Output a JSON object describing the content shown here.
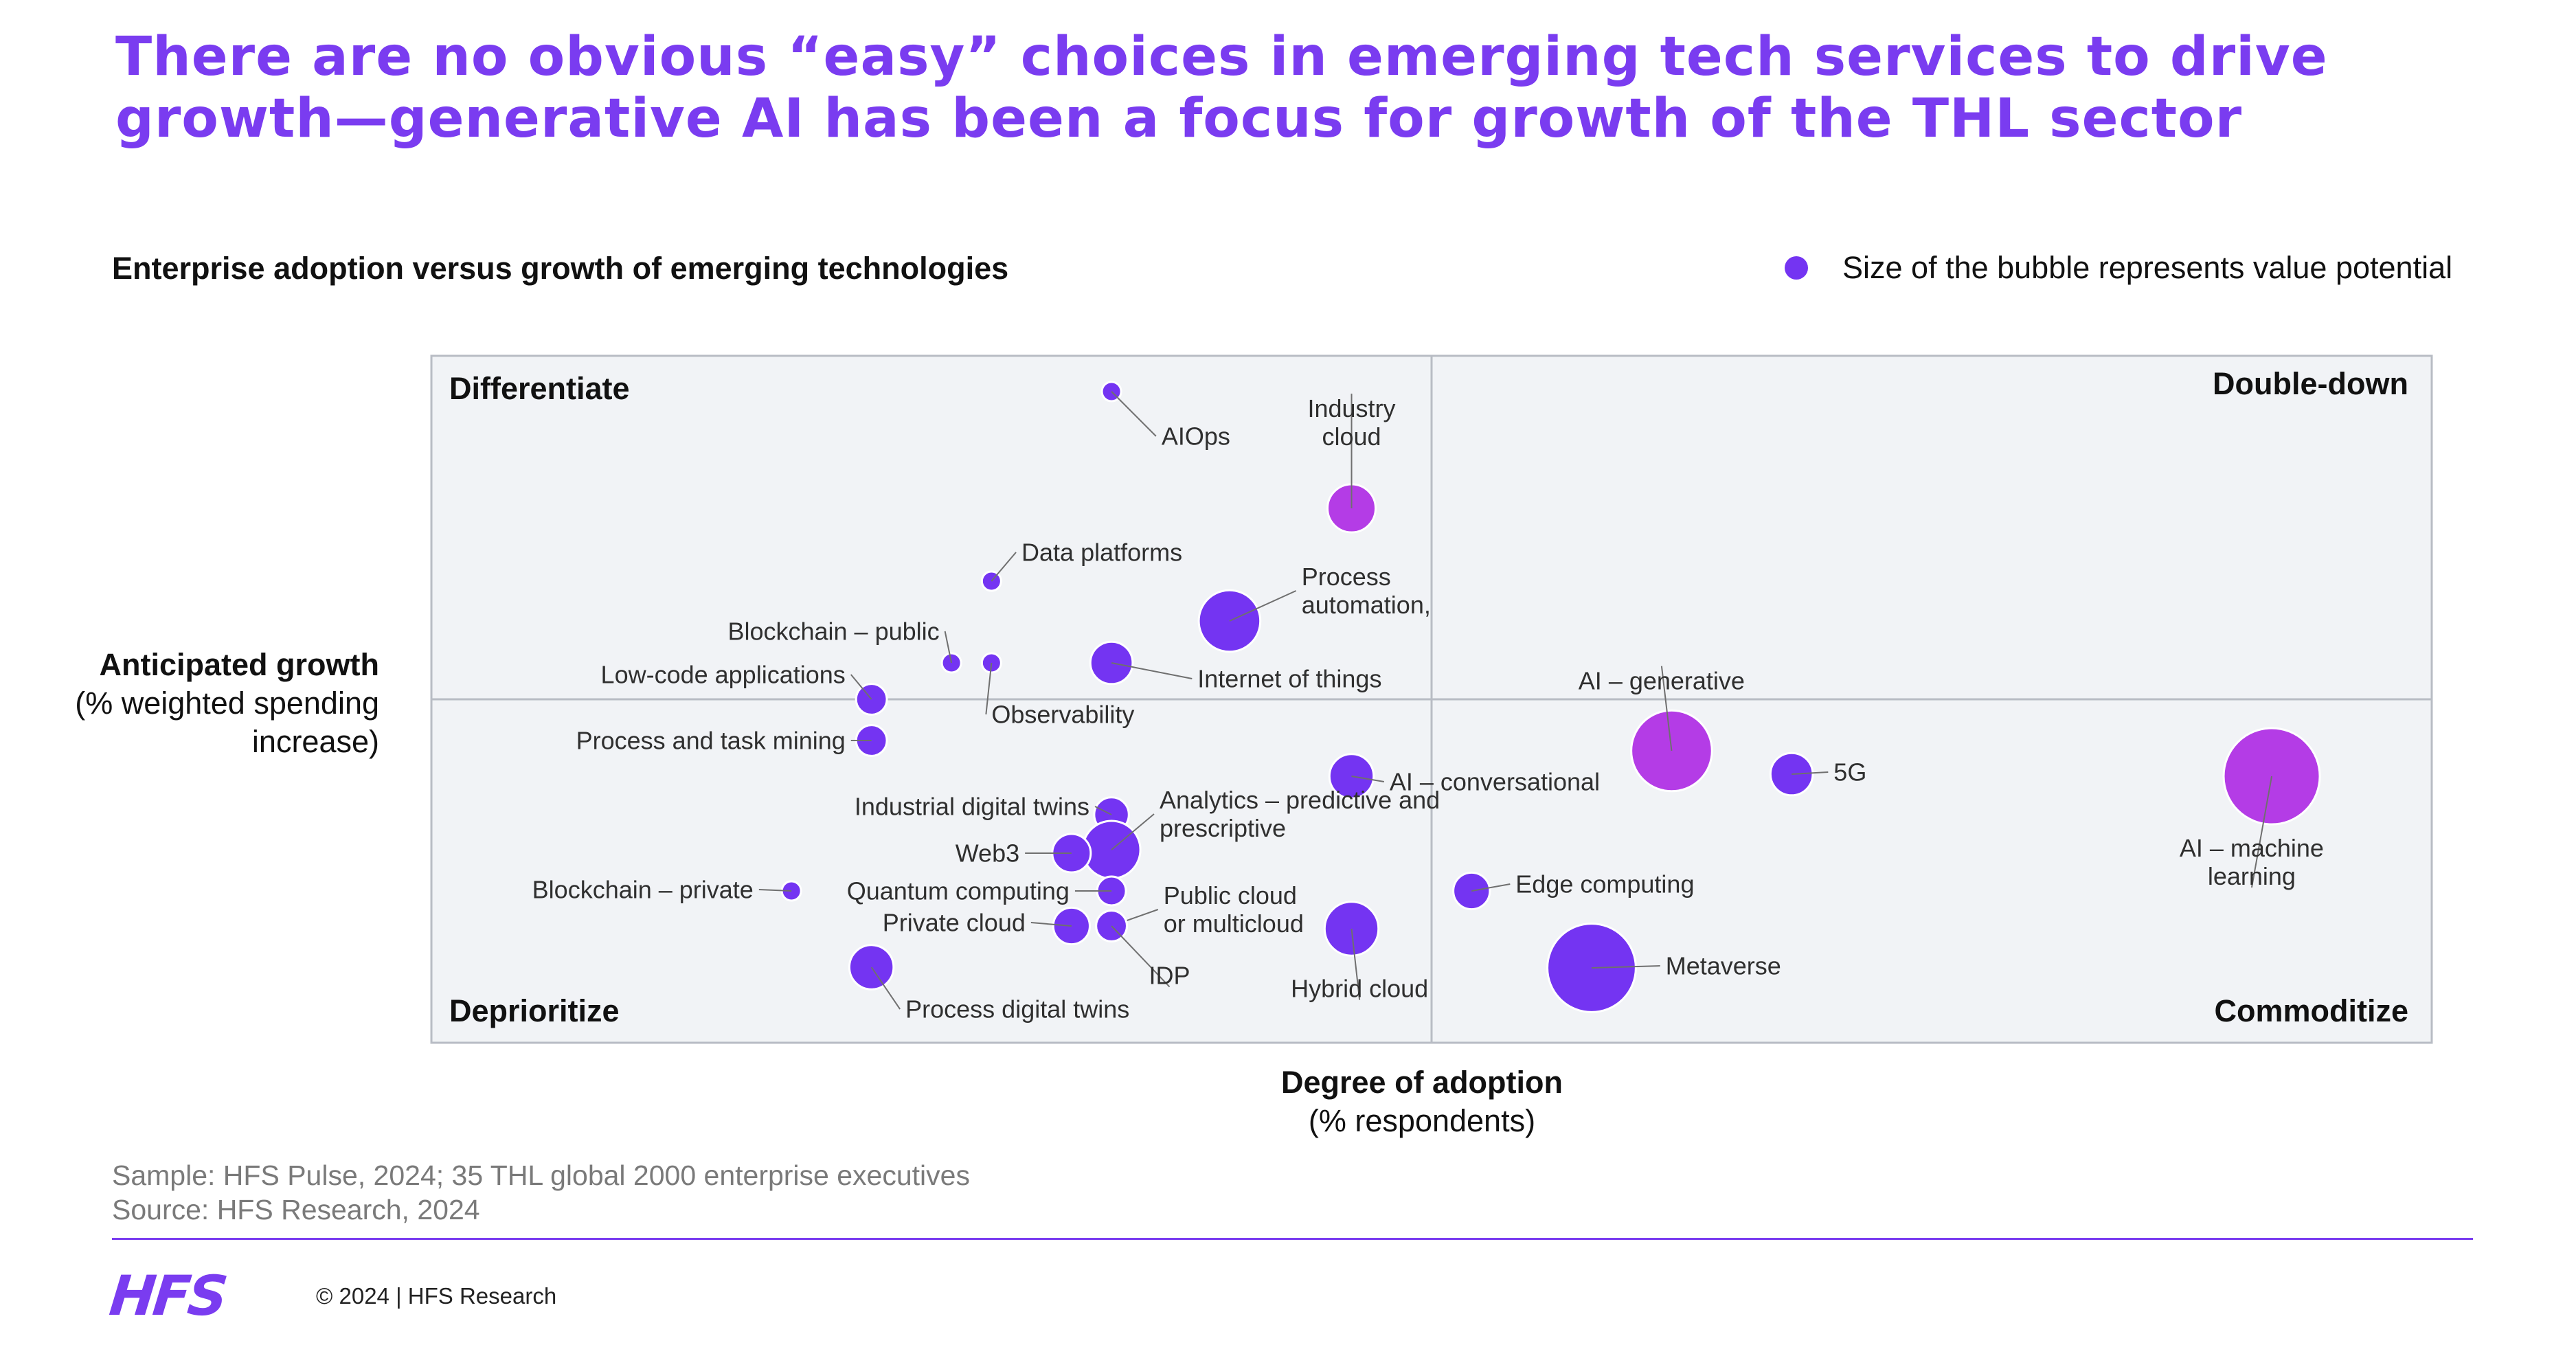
{
  "title": "There are no obvious “easy” choices in emerging tech services to drive growth—generative AI has been a focus for growth of the THL sector",
  "subtitle": "Enterprise adoption versus growth of emerging technologies",
  "legend": {
    "text": "Size of the bubble represents value potential"
  },
  "axes": {
    "y_title": "Anticipated growth",
    "y_unit": "(% weighted spending increase)",
    "x_title": "Degree of adoption",
    "x_unit": "(% respondents)"
  },
  "footer": {
    "sample": "Sample: HFS Pulse, 2024; 35 THL global 2000 enterprise executives",
    "source": "Source: HFS Research, 2024",
    "logo": "HFS",
    "copyright": "© 2024 | HFS Research"
  },
  "colors": {
    "accent": "#7a3cf0",
    "bubble": "#7434f2",
    "highlight": "#b43ce6",
    "grid": "#b8bcc4",
    "plot_bg": "#f1f3f6"
  },
  "chart_data": {
    "type": "scatter",
    "subtype": "bubble",
    "quadrants": {
      "top_left": "Differentiate",
      "top_right": "Double-down",
      "bottom_left": "Deprioritize",
      "bottom_right": "Commoditize"
    },
    "xlim": [
      0,
      100
    ],
    "ylim": [
      0,
      100
    ],
    "x_tick_labels": "none",
    "y_tick_labels": "none",
    "grid": "quadrant dividers only",
    "points": [
      {
        "name": "AIOps",
        "x": 34.0,
        "y": 94.8,
        "size": 1.0,
        "highlight": false,
        "label_lines": [
          "AIOps"
        ],
        "label_dx": 2.5,
        "label_dy": -6.5,
        "anchor": "start"
      },
      {
        "name": "Industry cloud",
        "x": 46.0,
        "y": 77.8,
        "size": 2.5,
        "highlight": true,
        "label_lines": [
          "Industry",
          "cloud"
        ],
        "label_dx": 0,
        "label_dy": 12.5,
        "anchor": "middle"
      },
      {
        "name": "Data platforms",
        "x": 28.0,
        "y": 67.2,
        "size": 1.0,
        "highlight": false,
        "label_lines": [
          "Data platforms"
        ],
        "label_dx": 1.5,
        "label_dy": 4.2,
        "anchor": "start"
      },
      {
        "name": "Process automation,",
        "x": 39.9,
        "y": 61.4,
        "size": 3.2,
        "highlight": false,
        "label_lines": [
          "Process",
          "automation,"
        ],
        "label_dx": 3.6,
        "label_dy": 4.4,
        "anchor": "start"
      },
      {
        "name": "Blockchain – public",
        "x": 26.0,
        "y": 55.3,
        "size": 1.0,
        "highlight": false,
        "label_lines": [
          "Blockchain – public"
        ],
        "label_dx": -0.6,
        "label_dy": 4.6,
        "anchor": "end"
      },
      {
        "name": "Observability",
        "x": 28.0,
        "y": 55.3,
        "size": 1.0,
        "highlight": false,
        "label_lines": [
          "Observability"
        ],
        "label_dx": 0,
        "label_dy": -7.5,
        "anchor": "start"
      },
      {
        "name": "Internet of things",
        "x": 34.0,
        "y": 55.3,
        "size": 2.2,
        "highlight": false,
        "label_lines": [
          "Internet of things"
        ],
        "label_dx": 4.3,
        "label_dy": -2.3,
        "anchor": "start"
      },
      {
        "name": "Low-code applications",
        "x": 22.0,
        "y": 50.0,
        "size": 1.6,
        "highlight": false,
        "label_lines": [
          "Low-code applications"
        ],
        "label_dx": -1.3,
        "label_dy": 3.6,
        "anchor": "end"
      },
      {
        "name": "Process and task mining",
        "x": 22.0,
        "y": 44.0,
        "size": 1.6,
        "highlight": false,
        "label_lines": [
          "Process and task mining"
        ],
        "label_dx": -1.3,
        "label_dy": 0,
        "anchor": "end"
      },
      {
        "name": "AI – generative",
        "x": 62.0,
        "y": 42.5,
        "size": 4.2,
        "highlight": true,
        "label_lines": [
          "AI – generative"
        ],
        "label_dx": -0.5,
        "label_dy": 10.2,
        "anchor": "middle"
      },
      {
        "name": "AI – conversational",
        "x": 46.0,
        "y": 38.8,
        "size": 2.3,
        "highlight": false,
        "label_lines": [
          "AI – conversational"
        ],
        "label_dx": 1.9,
        "label_dy": -0.8,
        "anchor": "start"
      },
      {
        "name": "5G",
        "x": 68.0,
        "y": 39.1,
        "size": 2.2,
        "highlight": false,
        "label_lines": [
          "5G"
        ],
        "label_dx": 2.1,
        "label_dy": 0.3,
        "anchor": "start"
      },
      {
        "name": "AI – machine learning",
        "x": 92.0,
        "y": 38.8,
        "size": 5.0,
        "highlight": true,
        "label_lines": [
          "AI – machine",
          "learning"
        ],
        "label_dx": -1.0,
        "label_dy": -12.5,
        "anchor": "middle"
      },
      {
        "name": "Industrial digital twins",
        "x": 34.0,
        "y": 33.2,
        "size": 1.8,
        "highlight": false,
        "label_lines": [
          "Industrial digital twins"
        ],
        "label_dx": -1.1,
        "label_dy": 1.2,
        "anchor": "end"
      },
      {
        "name": "Analytics – predictive and prescriptive",
        "x": 34.0,
        "y": 28.1,
        "size": 3.0,
        "highlight": false,
        "label_lines": [
          "Analytics – predictive and",
          "prescriptive"
        ],
        "label_dx": 2.4,
        "label_dy": 5.2,
        "anchor": "start"
      },
      {
        "name": "Web3",
        "x": 32.0,
        "y": 27.6,
        "size": 2.0,
        "highlight": false,
        "label_lines": [
          "Web3"
        ],
        "label_dx": -2.6,
        "label_dy": 0,
        "anchor": "end"
      },
      {
        "name": "Blockchain – private",
        "x": 18.0,
        "y": 22.1,
        "size": 1.0,
        "highlight": false,
        "label_lines": [
          "Blockchain – private"
        ],
        "label_dx": -1.9,
        "label_dy": 0.2,
        "anchor": "end"
      },
      {
        "name": "Quantum computing",
        "x": 34.0,
        "y": 22.1,
        "size": 1.5,
        "highlight": false,
        "label_lines": [
          "Quantum computing"
        ],
        "label_dx": -2.1,
        "label_dy": 0,
        "anchor": "end"
      },
      {
        "name": "Edge computing",
        "x": 52.0,
        "y": 22.1,
        "size": 1.9,
        "highlight": false,
        "label_lines": [
          "Edge computing"
        ],
        "label_dx": 2.2,
        "label_dy": 1.0,
        "anchor": "start"
      },
      {
        "name": "Public cloud or multicloud",
        "x": 34.0,
        "y": 17.0,
        "size": 1.6,
        "highlight": false,
        "label_lines": [
          "Public cloud",
          "or multicloud"
        ],
        "label_dx": 2.6,
        "label_dy": 2.4,
        "anchor": "start"
      },
      {
        "name": "Private cloud",
        "x": 32.0,
        "y": 17.0,
        "size": 1.9,
        "highlight": false,
        "label_lines": [
          "Private cloud"
        ],
        "label_dx": -2.3,
        "label_dy": 0.5,
        "anchor": "end"
      },
      {
        "name": "IDP",
        "x": 34.0,
        "y": 17.0,
        "size": 1.6,
        "highlight": false,
        "label_lines": [
          "IDP"
        ],
        "label_dx": 2.9,
        "label_dy": -7.2,
        "anchor": "middle"
      },
      {
        "name": "Hybrid cloud",
        "x": 46.0,
        "y": 16.6,
        "size": 2.8,
        "highlight": false,
        "label_lines": [
          "Hybrid cloud"
        ],
        "label_dx": 0.4,
        "label_dy": -8.7,
        "anchor": "middle"
      },
      {
        "name": "Metaverse",
        "x": 58.0,
        "y": 10.9,
        "size": 4.6,
        "highlight": false,
        "label_lines": [
          "Metaverse"
        ],
        "label_dx": 3.7,
        "label_dy": 0.3,
        "anchor": "start"
      },
      {
        "name": "Process digital twins",
        "x": 22.0,
        "y": 11.0,
        "size": 2.3,
        "highlight": false,
        "label_lines": [
          "Process digital twins"
        ],
        "label_dx": 1.7,
        "label_dy": -6.1,
        "anchor": "start"
      }
    ]
  }
}
